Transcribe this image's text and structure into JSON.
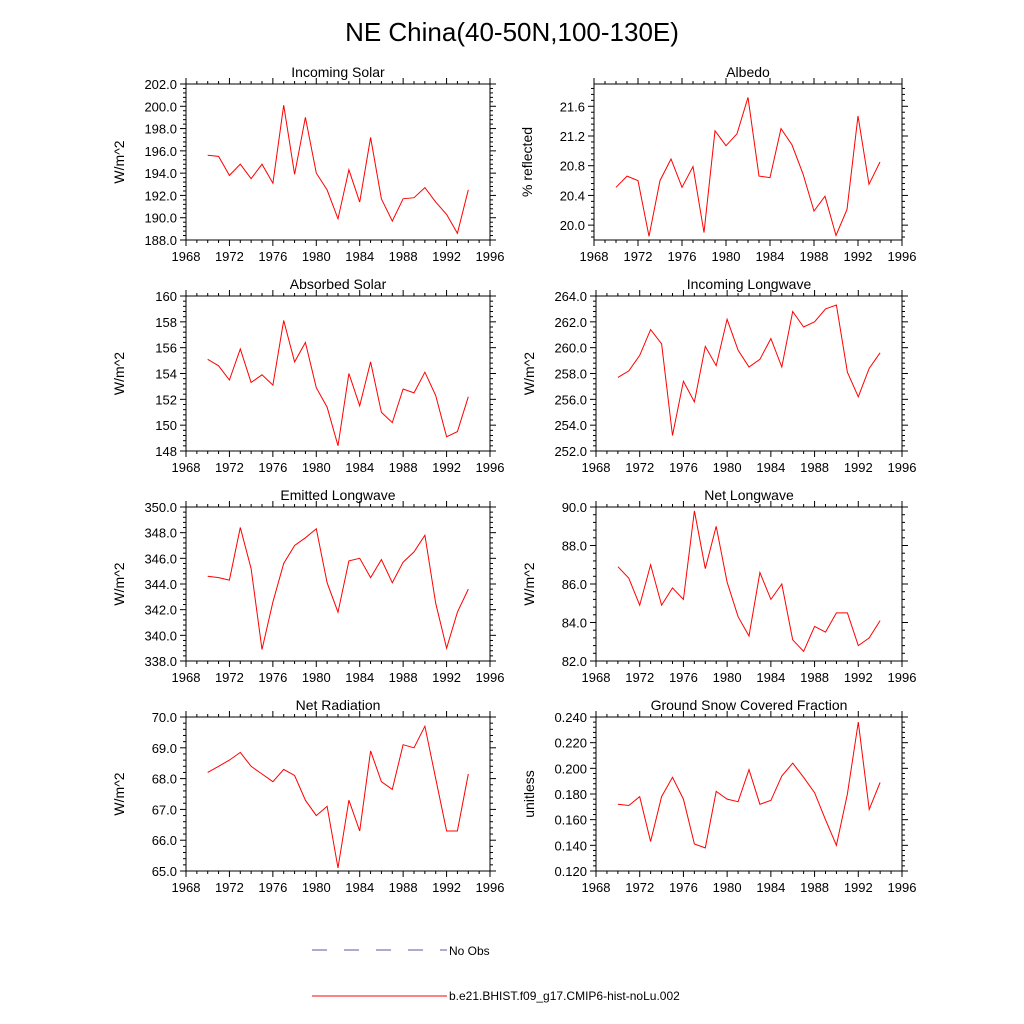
{
  "title": "NE China(40-50N,100-130E)",
  "chart_data": [
    {
      "type": "line",
      "title": "Incoming Solar",
      "ylabel": "W/m^2",
      "xlim": [
        1968,
        1996
      ],
      "ylim": [
        188.0,
        202.0
      ],
      "xticks": [
        "1968",
        "1972",
        "1976",
        "1980",
        "1984",
        "1988",
        "1992",
        "1996"
      ],
      "yticks": [
        "188.0",
        "190.0",
        "192.0",
        "194.0",
        "196.0",
        "198.0",
        "200.0",
        "202.0"
      ],
      "x": [
        1970,
        1971,
        1972,
        1973,
        1974,
        1975,
        1976,
        1977,
        1978,
        1979,
        1980,
        1981,
        1982,
        1983,
        1984,
        1985,
        1986,
        1987,
        1988,
        1989,
        1990,
        1991,
        1992,
        1993,
        1994
      ],
      "series": [
        {
          "name": "b.e21.BHIST.f09_g17.CMIP6-hist-noLu.002",
          "color": "#ff0000",
          "values": [
            195.6,
            195.5,
            193.8,
            194.8,
            193.5,
            194.8,
            193.1,
            200.1,
            193.9,
            199.0,
            194.0,
            192.5,
            189.9,
            194.3,
            191.4,
            197.2,
            191.7,
            189.7,
            191.7,
            191.8,
            192.7,
            191.4,
            190.3,
            188.6,
            192.5
          ]
        }
      ]
    },
    {
      "type": "line",
      "title": "Albedo",
      "ylabel": "% reflected",
      "xlim": [
        1968,
        1996
      ],
      "ylim": [
        19.8,
        21.9
      ],
      "xticks": [
        "1968",
        "1972",
        "1976",
        "1980",
        "1984",
        "1988",
        "1992",
        "1996"
      ],
      "yticks": [
        "20.0",
        "20.4",
        "20.8",
        "21.2",
        "21.6"
      ],
      "x": [
        1970,
        1971,
        1972,
        1973,
        1974,
        1975,
        1976,
        1977,
        1978,
        1979,
        1980,
        1981,
        1982,
        1983,
        1984,
        1985,
        1986,
        1987,
        1988,
        1989,
        1990,
        1991,
        1992,
        1993,
        1994
      ],
      "series": [
        {
          "name": "b.e21.BHIST.f09_g17.CMIP6-hist-noLu.002",
          "color": "#ff0000",
          "values": [
            20.51,
            20.66,
            20.6,
            19.85,
            20.6,
            20.89,
            20.51,
            20.79,
            19.9,
            21.27,
            21.07,
            21.23,
            21.72,
            20.66,
            20.64,
            21.3,
            21.08,
            20.69,
            20.19,
            20.39,
            19.86,
            20.21,
            21.47,
            20.55,
            20.85
          ]
        }
      ]
    },
    {
      "type": "line",
      "title": "Absorbed Solar",
      "ylabel": "W/m^2",
      "xlim": [
        1968,
        1996
      ],
      "ylim": [
        148,
        160
      ],
      "xticks": [
        "1968",
        "1972",
        "1976",
        "1980",
        "1984",
        "1988",
        "1992",
        "1996"
      ],
      "yticks": [
        "148",
        "150",
        "152",
        "154",
        "156",
        "158",
        "160"
      ],
      "x": [
        1970,
        1971,
        1972,
        1973,
        1974,
        1975,
        1976,
        1977,
        1978,
        1979,
        1980,
        1981,
        1982,
        1983,
        1984,
        1985,
        1986,
        1987,
        1988,
        1989,
        1990,
        1991,
        1992,
        1993,
        1994
      ],
      "series": [
        {
          "name": "b.e21.BHIST.f09_g17.CMIP6-hist-noLu.002",
          "color": "#ff0000",
          "values": [
            155.1,
            154.6,
            153.5,
            155.9,
            153.3,
            153.9,
            153.1,
            158.1,
            154.9,
            156.4,
            152.9,
            151.4,
            148.4,
            154.0,
            151.5,
            154.9,
            151.0,
            150.2,
            152.8,
            152.5,
            154.1,
            152.3,
            149.1,
            149.5,
            152.2
          ]
        }
      ]
    },
    {
      "type": "line",
      "title": "Incoming Longwave",
      "ylabel": "W/m^2",
      "xlim": [
        1968,
        1996
      ],
      "ylim": [
        252.0,
        264.0
      ],
      "xticks": [
        "1968",
        "1972",
        "1976",
        "1980",
        "1984",
        "1988",
        "1992",
        "1996"
      ],
      "yticks": [
        "252.0",
        "254.0",
        "256.0",
        "258.0",
        "260.0",
        "262.0",
        "264.0"
      ],
      "x": [
        1970,
        1971,
        1972,
        1973,
        1974,
        1975,
        1976,
        1977,
        1978,
        1979,
        1980,
        1981,
        1982,
        1983,
        1984,
        1985,
        1986,
        1987,
        1988,
        1989,
        1990,
        1991,
        1992,
        1993,
        1994
      ],
      "series": [
        {
          "name": "b.e21.BHIST.f09_g17.CMIP6-hist-noLu.002",
          "color": "#ff0000",
          "values": [
            257.7,
            258.2,
            259.4,
            261.4,
            260.3,
            253.2,
            257.4,
            255.8,
            260.1,
            258.6,
            262.2,
            259.8,
            258.5,
            259.1,
            260.7,
            258.5,
            262.8,
            261.6,
            262.0,
            263.0,
            263.3,
            258.1,
            256.2,
            258.4,
            259.6
          ]
        }
      ]
    },
    {
      "type": "line",
      "title": "Emitted Longwave",
      "ylabel": "W/m^2",
      "xlim": [
        1968,
        1996
      ],
      "ylim": [
        338.0,
        350.0
      ],
      "xticks": [
        "1968",
        "1972",
        "1976",
        "1980",
        "1984",
        "1988",
        "1992",
        "1996"
      ],
      "yticks": [
        "338.0",
        "340.0",
        "342.0",
        "344.0",
        "346.0",
        "348.0",
        "350.0"
      ],
      "x": [
        1970,
        1971,
        1972,
        1973,
        1974,
        1975,
        1976,
        1977,
        1978,
        1979,
        1980,
        1981,
        1982,
        1983,
        1984,
        1985,
        1986,
        1987,
        1988,
        1989,
        1990,
        1991,
        1992,
        1993,
        1994
      ],
      "series": [
        {
          "name": "b.e21.BHIST.f09_g17.CMIP6-hist-noLu.002",
          "color": "#ff0000",
          "values": [
            344.6,
            344.5,
            344.3,
            348.4,
            345.2,
            338.9,
            342.6,
            345.6,
            347.0,
            347.6,
            348.3,
            344.1,
            341.8,
            345.8,
            346.0,
            344.5,
            345.9,
            344.1,
            345.7,
            346.5,
            347.8,
            342.5,
            339.0,
            341.8,
            343.6
          ]
        }
      ]
    },
    {
      "type": "line",
      "title": "Net Longwave",
      "ylabel": "W/m^2",
      "xlim": [
        1968,
        1996
      ],
      "ylim": [
        82.0,
        90.0
      ],
      "xticks": [
        "1968",
        "1972",
        "1976",
        "1980",
        "1984",
        "1988",
        "1992",
        "1996"
      ],
      "yticks": [
        "82.0",
        "84.0",
        "86.0",
        "88.0",
        "90.0"
      ],
      "x": [
        1970,
        1971,
        1972,
        1973,
        1974,
        1975,
        1976,
        1977,
        1978,
        1979,
        1980,
        1981,
        1982,
        1983,
        1984,
        1985,
        1986,
        1987,
        1988,
        1989,
        1990,
        1991,
        1992,
        1993,
        1994
      ],
      "series": [
        {
          "name": "b.e21.BHIST.f09_g17.CMIP6-hist-noLu.002",
          "color": "#ff0000",
          "values": [
            86.9,
            86.3,
            84.9,
            87.0,
            84.9,
            85.8,
            85.2,
            89.8,
            86.8,
            89.0,
            86.1,
            84.3,
            83.3,
            86.6,
            85.2,
            86.0,
            83.1,
            82.5,
            83.8,
            83.5,
            84.5,
            84.5,
            82.8,
            83.2,
            84.1
          ]
        }
      ]
    },
    {
      "type": "line",
      "title": "Net Radiation",
      "ylabel": "W/m^2",
      "xlim": [
        1968,
        1996
      ],
      "ylim": [
        65.0,
        70.0
      ],
      "xticks": [
        "1968",
        "1972",
        "1976",
        "1980",
        "1984",
        "1988",
        "1992",
        "1996"
      ],
      "yticks": [
        "65.0",
        "66.0",
        "67.0",
        "68.0",
        "69.0",
        "70.0"
      ],
      "x": [
        1970,
        1971,
        1972,
        1973,
        1974,
        1975,
        1976,
        1977,
        1978,
        1979,
        1980,
        1981,
        1982,
        1983,
        1984,
        1985,
        1986,
        1987,
        1988,
        1989,
        1990,
        1991,
        1992,
        1993,
        1994
      ],
      "series": [
        {
          "name": "b.e21.BHIST.f09_g17.CMIP6-hist-noLu.002",
          "color": "#ff0000",
          "values": [
            68.2,
            68.4,
            68.6,
            68.85,
            68.4,
            68.15,
            67.9,
            68.3,
            68.1,
            67.3,
            66.8,
            67.1,
            65.1,
            67.3,
            66.3,
            68.9,
            67.9,
            67.65,
            69.1,
            69.0,
            69.7,
            68.0,
            66.3,
            66.3,
            68.15
          ]
        }
      ]
    },
    {
      "type": "line",
      "title": "Ground Snow Covered Fraction",
      "ylabel": "unitless",
      "xlim": [
        1968,
        1996
      ],
      "ylim": [
        0.12,
        0.24
      ],
      "xticks": [
        "1968",
        "1972",
        "1976",
        "1980",
        "1984",
        "1988",
        "1992",
        "1996"
      ],
      "yticks": [
        "0.120",
        "0.140",
        "0.160",
        "0.180",
        "0.200",
        "0.220",
        "0.240"
      ],
      "x": [
        1970,
        1971,
        1972,
        1973,
        1974,
        1975,
        1976,
        1977,
        1978,
        1979,
        1980,
        1981,
        1982,
        1983,
        1984,
        1985,
        1986,
        1987,
        1988,
        1989,
        1990,
        1991,
        1992,
        1993,
        1994
      ],
      "series": [
        {
          "name": "b.e21.BHIST.f09_g17.CMIP6-hist-noLu.002",
          "color": "#ff0000",
          "values": [
            0.172,
            0.171,
            0.178,
            0.143,
            0.178,
            0.193,
            0.176,
            0.141,
            0.138,
            0.182,
            0.176,
            0.174,
            0.199,
            0.172,
            0.175,
            0.194,
            0.204,
            0.193,
            0.181,
            0.16,
            0.14,
            0.18,
            0.236,
            0.168,
            0.189
          ]
        }
      ]
    }
  ],
  "legend": [
    {
      "label": "No Obs",
      "color": "#5a5aa0",
      "style": "dashed"
    },
    {
      "label": "b.e21.BHIST.f09_g17.CMIP6-hist-noLu.002",
      "color": "#ff0000",
      "style": "solid"
    }
  ]
}
